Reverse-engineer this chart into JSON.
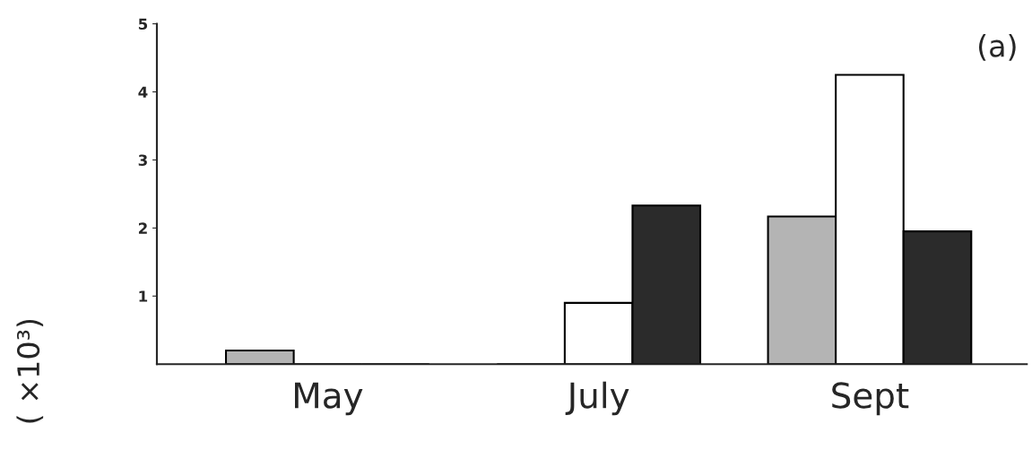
{
  "chart_data": {
    "type": "bar",
    "categories": [
      "May",
      "July",
      "Sept"
    ],
    "series": [
      {
        "color": "#b4b4b4",
        "values": [
          0.2,
          0,
          2.17
        ]
      },
      {
        "color": "#ffffff",
        "values": [
          0,
          0.9,
          4.25
        ]
      },
      {
        "color": "#2b2b2b",
        "values": [
          0,
          2.33,
          1.95
        ]
      }
    ],
    "ylabel": "( ×10³)",
    "ylim": [
      0,
      5
    ],
    "yticks": [
      1,
      2,
      3,
      4,
      5
    ],
    "grid": false,
    "legend": false,
    "annotations": [
      "(a)"
    ]
  }
}
